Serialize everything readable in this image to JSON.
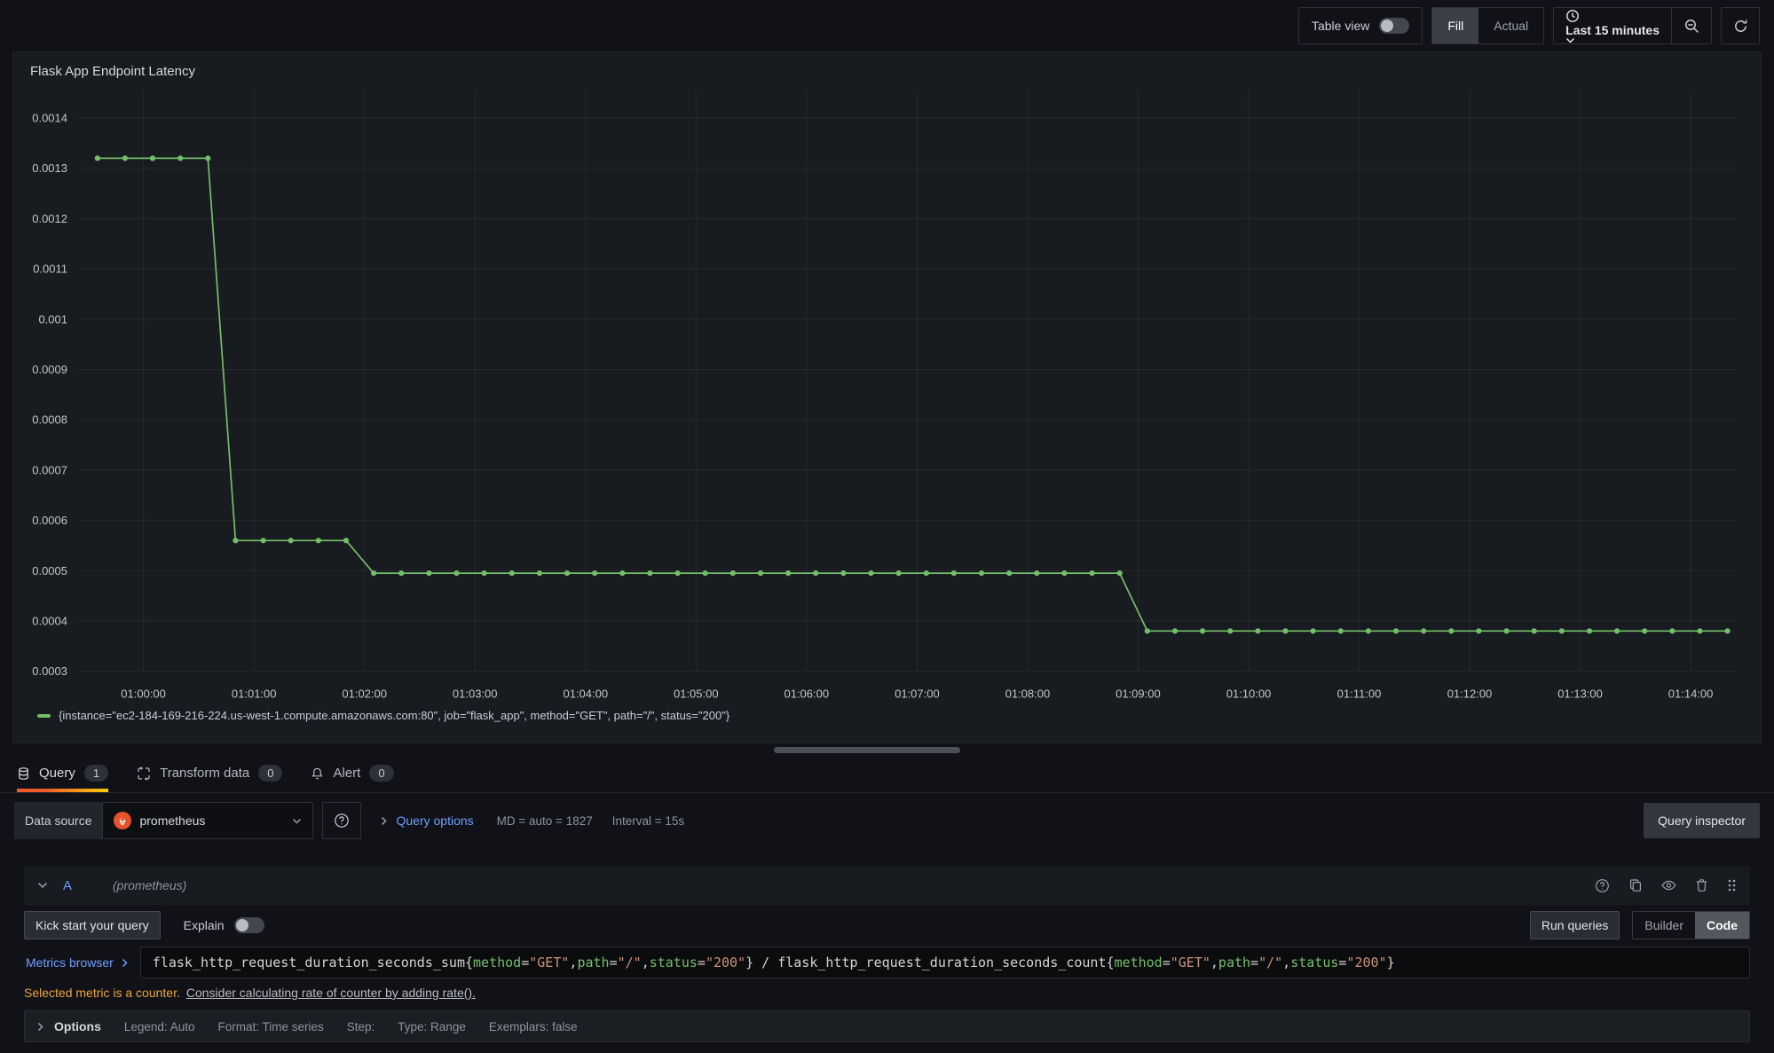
{
  "topbar": {
    "table_view_label": "Table view",
    "fill_label": "Fill",
    "actual_label": "Actual",
    "time_range_label": "Last 15 minutes"
  },
  "panel": {
    "title": "Flask App Endpoint Latency"
  },
  "chart_data": {
    "type": "line",
    "title": "Flask App Endpoint Latency",
    "legend_position": "bottom",
    "grid": true,
    "y_axis": {
      "max": 0.0014,
      "min": 0.0003,
      "tick_step": 0.0001,
      "tick_labels": [
        "0.0014",
        "0.0013",
        "0.0012",
        "0.0011",
        "0.001",
        "0.0009",
        "0.0008",
        "0.0007",
        "0.0006",
        "0.0005",
        "0.0004",
        "0.0003"
      ]
    },
    "x_axis": {
      "duration_s": 900,
      "labels": [
        "01:00:00",
        "01:01:00",
        "01:02:00",
        "01:03:00",
        "01:04:00",
        "01:05:00",
        "01:06:00",
        "01:07:00",
        "01:08:00",
        "01:09:00",
        "01:10:00",
        "01:11:00",
        "01:12:00",
        "01:13:00",
        "01:14:00"
      ],
      "offsets_s": [
        35,
        95,
        155,
        215,
        275,
        335,
        395,
        455,
        515,
        575,
        635,
        695,
        755,
        815,
        875
      ]
    },
    "series": [
      {
        "name": "{instance=\"ec2-184-169-216-224.us-west-1.compute.amazonaws.com:80\", job=\"flask_app\", method=\"GET\", path=\"/\", status=\"200\"}",
        "color": "#73bf69",
        "points": [
          [
            10,
            0.00132
          ],
          [
            25,
            0.00132
          ],
          [
            40,
            0.00132
          ],
          [
            55,
            0.00132
          ],
          [
            70,
            0.00132
          ],
          [
            85,
            0.00056
          ],
          [
            100,
            0.00056
          ],
          [
            115,
            0.00056
          ],
          [
            130,
            0.00056
          ],
          [
            145,
            0.00056
          ],
          [
            160,
            0.000495
          ],
          [
            175,
            0.000495
          ],
          [
            190,
            0.000495
          ],
          [
            205,
            0.000495
          ],
          [
            220,
            0.000495
          ],
          [
            235,
            0.000495
          ],
          [
            250,
            0.000495
          ],
          [
            265,
            0.000495
          ],
          [
            280,
            0.000495
          ],
          [
            295,
            0.000495
          ],
          [
            310,
            0.000495
          ],
          [
            325,
            0.000495
          ],
          [
            340,
            0.000495
          ],
          [
            355,
            0.000495
          ],
          [
            370,
            0.000495
          ],
          [
            385,
            0.000495
          ],
          [
            400,
            0.000495
          ],
          [
            415,
            0.000495
          ],
          [
            430,
            0.000495
          ],
          [
            445,
            0.000495
          ],
          [
            460,
            0.000495
          ],
          [
            475,
            0.000495
          ],
          [
            490,
            0.000495
          ],
          [
            505,
            0.000495
          ],
          [
            520,
            0.000495
          ],
          [
            535,
            0.000495
          ],
          [
            550,
            0.000495
          ],
          [
            565,
            0.000495
          ],
          [
            580,
            0.00038
          ],
          [
            595,
            0.00038
          ],
          [
            610,
            0.00038
          ],
          [
            625,
            0.00038
          ],
          [
            640,
            0.00038
          ],
          [
            655,
            0.00038
          ],
          [
            670,
            0.00038
          ],
          [
            685,
            0.00038
          ],
          [
            700,
            0.00038
          ],
          [
            715,
            0.00038
          ],
          [
            730,
            0.00038
          ],
          [
            745,
            0.00038
          ],
          [
            760,
            0.00038
          ],
          [
            775,
            0.00038
          ],
          [
            790,
            0.00038
          ],
          [
            805,
            0.00038
          ],
          [
            820,
            0.00038
          ],
          [
            835,
            0.00038
          ],
          [
            850,
            0.00038
          ],
          [
            865,
            0.00038
          ],
          [
            880,
            0.00038
          ],
          [
            895,
            0.00038
          ]
        ]
      }
    ]
  },
  "tabs": [
    {
      "label": "Query",
      "count": "1"
    },
    {
      "label": "Transform data",
      "count": "0"
    },
    {
      "label": "Alert",
      "count": "0"
    }
  ],
  "datasource": {
    "label": "Data source",
    "value": "prometheus",
    "query_options_label": "Query options",
    "md_text": "MD = auto = 1827",
    "interval_text": "Interval = 15s",
    "inspector_label": "Query inspector"
  },
  "query_row": {
    "ref_id": "A",
    "datasource_hint": "(prometheus)"
  },
  "editor": {
    "kick_start_label": "Kick start your query",
    "explain_label": "Explain",
    "run_queries_label": "Run queries",
    "builder_label": "Builder",
    "code_label": "Code"
  },
  "query_editor": {
    "metrics_browser_label": "Metrics browser",
    "segments": [
      {
        "t": "flask_http_request_duration_seconds_sum{",
        "c": "p"
      },
      {
        "t": "method",
        "c": "k"
      },
      {
        "t": "=",
        "c": "p"
      },
      {
        "t": "\"GET\"",
        "c": "s"
      },
      {
        "t": ",",
        "c": "p"
      },
      {
        "t": "path",
        "c": "k"
      },
      {
        "t": "=",
        "c": "p"
      },
      {
        "t": "\"/\"",
        "c": "s"
      },
      {
        "t": ",",
        "c": "p"
      },
      {
        "t": "status",
        "c": "k"
      },
      {
        "t": "=",
        "c": "p"
      },
      {
        "t": "\"200\"",
        "c": "s"
      },
      {
        "t": "} / flask_http_request_duration_seconds_count{",
        "c": "p"
      },
      {
        "t": "method",
        "c": "k"
      },
      {
        "t": "=",
        "c": "p"
      },
      {
        "t": "\"GET\"",
        "c": "s"
      },
      {
        "t": ",",
        "c": "p"
      },
      {
        "t": "path",
        "c": "k"
      },
      {
        "t": "=",
        "c": "p"
      },
      {
        "t": "\"/\"",
        "c": "s"
      },
      {
        "t": ",",
        "c": "p"
      },
      {
        "t": "status",
        "c": "k"
      },
      {
        "t": "=",
        "c": "p"
      },
      {
        "t": "\"200\"",
        "c": "s"
      },
      {
        "t": "}",
        "c": "p"
      }
    ]
  },
  "warning": {
    "text": "Selected metric is a counter.",
    "link_text": "Consider calculating rate of counter by adding rate()."
  },
  "options": {
    "label": "Options",
    "items": [
      "Legend: Auto",
      "Format: Time series",
      "Step:",
      "Type: Range",
      "Exemplars: false"
    ]
  }
}
